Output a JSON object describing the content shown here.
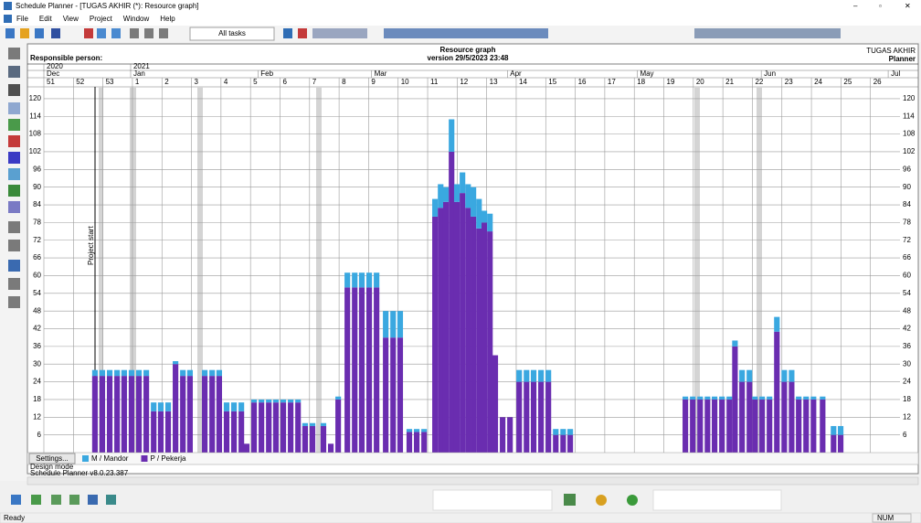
{
  "window": {
    "title": "Schedule Planner - [TUGAS AKHIR (*): Resource graph]",
    "menu": [
      "File",
      "Edit",
      "View",
      "Project",
      "Window",
      "Help"
    ],
    "toolbar_filter": "All tasks"
  },
  "chart_data": {
    "type": "bar",
    "stacked": true,
    "grid": true,
    "title": "Resource graph",
    "subtitle": "version 29/5/2023 23:48",
    "project": "TUGAS AKHIR",
    "role": "Planner",
    "responsible": "Responsible person:",
    "annotation": "Project start",
    "year_ticks": [
      {
        "value": 0,
        "label": "2020"
      },
      {
        "value": 2.94,
        "label": "2021"
      }
    ],
    "month_ticks": [
      {
        "value": 0,
        "label": "Dec"
      },
      {
        "value": 2.94,
        "label": "Jan"
      },
      {
        "value": 7.25,
        "label": "Feb"
      },
      {
        "value": 11.1,
        "label": "Mar"
      },
      {
        "value": 15.7,
        "label": "Apr"
      },
      {
        "value": 20.1,
        "label": "May"
      },
      {
        "value": 24.3,
        "label": "Jun"
      },
      {
        "value": 28.6,
        "label": "Jul"
      }
    ],
    "xlim": [
      0,
      29
    ],
    "xticks": [
      {
        "value": 0,
        "label": "51"
      },
      {
        "value": 1,
        "label": "52"
      },
      {
        "value": 2,
        "label": "53"
      },
      {
        "value": 3,
        "label": "1"
      },
      {
        "value": 4,
        "label": "2"
      },
      {
        "value": 5,
        "label": "3"
      },
      {
        "value": 6,
        "label": "4"
      },
      {
        "value": 7,
        "label": "5"
      },
      {
        "value": 8,
        "label": "6"
      },
      {
        "value": 9,
        "label": "7"
      },
      {
        "value": 10,
        "label": "8"
      },
      {
        "value": 11,
        "label": "9"
      },
      {
        "value": 12,
        "label": "10"
      },
      {
        "value": 13,
        "label": "11"
      },
      {
        "value": 14,
        "label": "12"
      },
      {
        "value": 15,
        "label": "13"
      },
      {
        "value": 16,
        "label": "14"
      },
      {
        "value": 17,
        "label": "15"
      },
      {
        "value": 18,
        "label": "16"
      },
      {
        "value": 19,
        "label": "17"
      },
      {
        "value": 20,
        "label": "18"
      },
      {
        "value": 21,
        "label": "19"
      },
      {
        "value": 22,
        "label": "20"
      },
      {
        "value": 23,
        "label": "21"
      },
      {
        "value": 24,
        "label": "22"
      },
      {
        "value": 25,
        "label": "23"
      },
      {
        "value": 26,
        "label": "24"
      },
      {
        "value": 27,
        "label": "25"
      },
      {
        "value": 28,
        "label": "26"
      }
    ],
    "ylim": [
      0,
      124
    ],
    "yticks": [
      6,
      12,
      18,
      24,
      30,
      36,
      42,
      48,
      54,
      60,
      66,
      72,
      78,
      84,
      90,
      96,
      102,
      108,
      114,
      120
    ],
    "x": [
      1.73,
      1.98,
      2.23,
      2.48,
      2.72,
      2.97,
      3.22,
      3.47,
      3.72,
      3.96,
      4.21,
      4.46,
      4.71,
      4.95,
      5.45,
      5.7,
      5.94,
      6.19,
      6.44,
      6.69,
      6.87,
      7.12,
      7.37,
      7.62,
      7.86,
      8.11,
      8.36,
      8.61,
      8.85,
      9.1,
      9.47,
      9.72,
      9.97,
      10.28,
      10.53,
      10.77,
      11.02,
      11.27,
      11.58,
      11.83,
      12.07,
      12.38,
      12.63,
      12.88,
      13.25,
      13.44,
      13.62,
      13.81,
      13.99,
      14.18,
      14.37,
      14.55,
      14.74,
      14.92,
      15.11,
      15.29,
      15.54,
      15.79,
      16.1,
      16.35,
      16.59,
      16.84,
      17.09,
      17.34,
      17.59,
      17.83,
      21.73,
      21.98,
      22.23,
      22.48,
      22.72,
      22.97,
      23.22,
      23.41,
      23.65,
      23.9,
      24.09,
      24.33,
      24.58,
      24.83,
      25.08,
      25.33,
      25.57,
      25.82,
      26.07,
      26.38,
      26.75,
      26.99
    ],
    "series": [
      {
        "name": "P / Pekerja",
        "color": "#6a2db0",
        "values": [
          26,
          26,
          26,
          26,
          26,
          26,
          26,
          26,
          14,
          14,
          14,
          30,
          26,
          26,
          26,
          26,
          26,
          14,
          14,
          14,
          3,
          17,
          17,
          17,
          17,
          17,
          17,
          17,
          9,
          9,
          9,
          3,
          18,
          56,
          56,
          56,
          56,
          56,
          39,
          39,
          39,
          7,
          7,
          7,
          80,
          83,
          85,
          102,
          85,
          88,
          83,
          80,
          76,
          78,
          75,
          33,
          12,
          12,
          24,
          24,
          24,
          24,
          24,
          6,
          6,
          6,
          18,
          18,
          18,
          18,
          18,
          18,
          18,
          36,
          24,
          24,
          18,
          18,
          18,
          41,
          24,
          24,
          18,
          18,
          18,
          18,
          6,
          6
        ]
      },
      {
        "name": "M / Mandor",
        "color": "#3aa8e0",
        "values": [
          2,
          2,
          2,
          2,
          2,
          2,
          2,
          2,
          3,
          3,
          3,
          1,
          2,
          2,
          2,
          2,
          2,
          3,
          3,
          3,
          0,
          1,
          1,
          1,
          1,
          1,
          1,
          1,
          1,
          1,
          1,
          0,
          1,
          5,
          5,
          5,
          5,
          5,
          9,
          9,
          9,
          1,
          1,
          1,
          6,
          8,
          5,
          11,
          6,
          7,
          8,
          10,
          10,
          4,
          6,
          0,
          0,
          0,
          4,
          4,
          4,
          4,
          4,
          2,
          2,
          2,
          1,
          1,
          1,
          1,
          1,
          1,
          1,
          2,
          4,
          4,
          1,
          1,
          1,
          5,
          4,
          4,
          1,
          1,
          1,
          1,
          3,
          3
        ]
      }
    ]
  },
  "footer": {
    "settings": "Settings...",
    "design_mode": "Design mode",
    "version": "Schedule Planner v8.0.23.387"
  },
  "status": {
    "ready": "Ready",
    "num": "NUM"
  }
}
